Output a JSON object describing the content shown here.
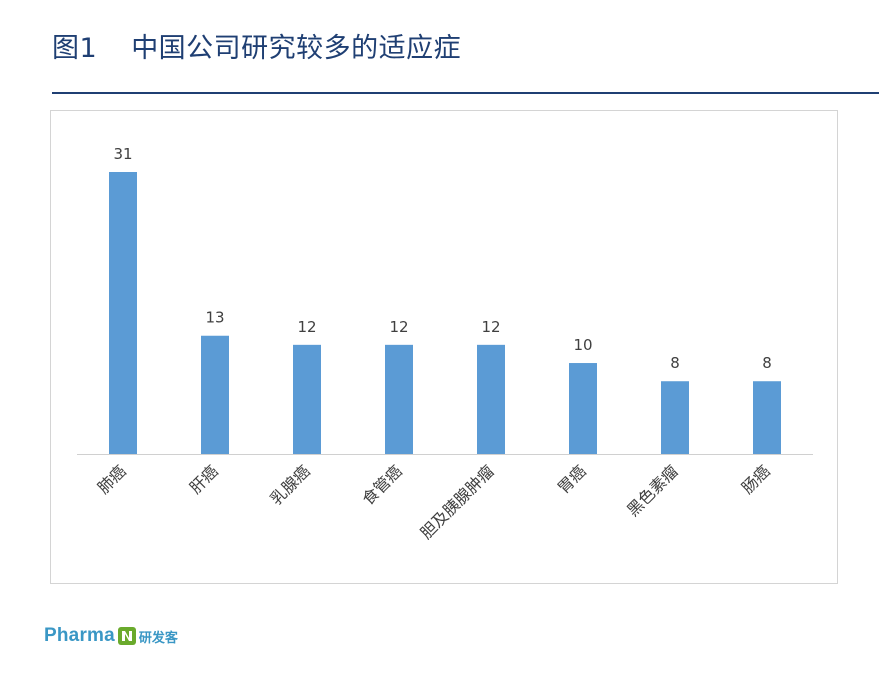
{
  "figure": {
    "number": "图1",
    "title": "中国公司研究较多的适应症"
  },
  "chart_data": {
    "type": "bar",
    "categories": [
      "肺癌",
      "肝癌",
      "乳腺癌",
      "食管癌",
      "胆及胰腺肿瘤",
      "胃癌",
      "黑色素瘤",
      "肠癌"
    ],
    "values": [
      31,
      13,
      12,
      12,
      12,
      10,
      8,
      8
    ],
    "data_labels": [
      "31",
      "13",
      "12",
      "12",
      "12",
      "10",
      "8",
      "8"
    ],
    "ylim": [
      0,
      31
    ],
    "bar_color": "#5b9bd5",
    "grid": false,
    "legend": "none",
    "label_rotation": -45
  },
  "brand": {
    "name": "Pharma",
    "cn_name": "研发客",
    "logo_color": "#3a97c5",
    "mark_color": "#6aaa2c"
  }
}
